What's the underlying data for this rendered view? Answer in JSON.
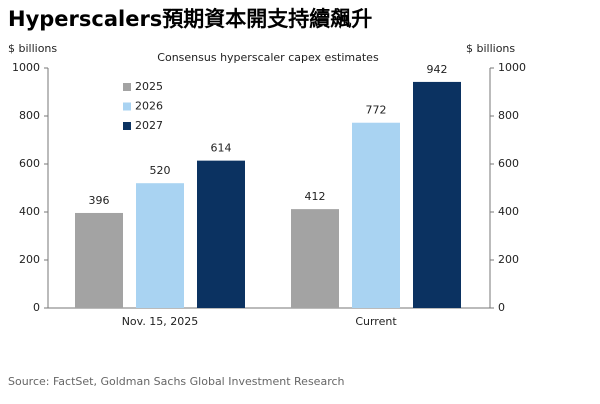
{
  "chart_data": {
    "type": "bar",
    "title": "Hyperscalers預期資本開支持續飆升",
    "subtitle": "Consensus hyperscaler capex estimates",
    "ylabel": "$ billions",
    "y2label": "$ billions",
    "categories": [
      "Nov. 15, 2025",
      "Current"
    ],
    "series": [
      {
        "name": "2025",
        "color": "#a3a3a3",
        "values": [
          396,
          412
        ]
      },
      {
        "name": "2026",
        "color": "#a9d3f2",
        "values": [
          520,
          772
        ]
      },
      {
        "name": "2027",
        "color": "#0b3261",
        "values": [
          614,
          942
        ]
      }
    ],
    "ylim": [
      0,
      1000
    ],
    "yticks": [
      0,
      200,
      400,
      600,
      800,
      1000
    ],
    "y2lim": [
      0,
      1000
    ],
    "y2ticks": [
      0,
      200,
      400,
      600,
      800,
      1000
    ],
    "legend": "upper left",
    "source": "Source: FactSet, Goldman Sachs Global Investment Research"
  }
}
